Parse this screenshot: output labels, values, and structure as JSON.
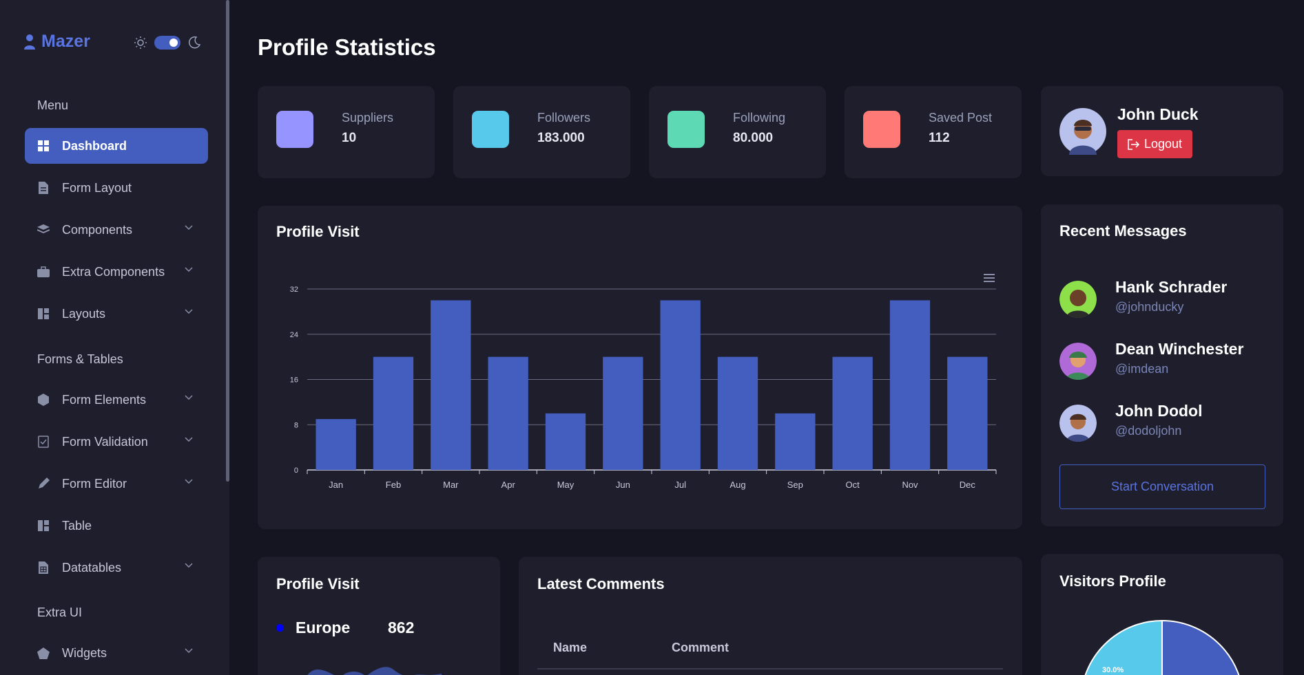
{
  "sidebar": {
    "brand": "Mazer",
    "sections": {
      "menu": "Menu",
      "forms_tables": "Forms & Tables",
      "extra_ui": "Extra UI"
    },
    "items": [
      {
        "label": "Dashboard"
      },
      {
        "label": "Form Layout"
      },
      {
        "label": "Components"
      },
      {
        "label": "Extra Components"
      },
      {
        "label": "Layouts"
      },
      {
        "label": "Form Elements"
      },
      {
        "label": "Form Validation"
      },
      {
        "label": "Form Editor"
      },
      {
        "label": "Table"
      },
      {
        "label": "Datatables"
      },
      {
        "label": "Widgets"
      }
    ]
  },
  "page": {
    "title": "Profile Statistics"
  },
  "stats": [
    {
      "label": "Suppliers",
      "value": "10",
      "color": "#9694ff"
    },
    {
      "label": "Followers",
      "value": "183.000",
      "color": "#57caeb"
    },
    {
      "label": "Following",
      "value": "80.000",
      "color": "#5ddab4"
    },
    {
      "label": "Saved Post",
      "value": "112",
      "color": "#ff7976"
    }
  ],
  "profile": {
    "name": "John Duck",
    "logout_label": "Logout"
  },
  "profile_visit_chart": {
    "title": "Profile Visit"
  },
  "chart_data": {
    "type": "bar",
    "title": "Profile Visit",
    "categories": [
      "Jan",
      "Feb",
      "Mar",
      "Apr",
      "May",
      "Jun",
      "Jul",
      "Aug",
      "Sep",
      "Oct",
      "Nov",
      "Dec"
    ],
    "values": [
      9,
      20,
      30,
      20,
      10,
      20,
      30,
      20,
      10,
      20,
      30,
      20
    ],
    "ylim": [
      0,
      32
    ],
    "yticks": [
      "0",
      "8",
      "16",
      "24",
      "32"
    ],
    "color": "#435ebe"
  },
  "recent_messages": {
    "title": "Recent Messages",
    "items": [
      {
        "name": "Hank Schrader",
        "handle": "@johnducky"
      },
      {
        "name": "Dean Winchester",
        "handle": "@imdean"
      },
      {
        "name": "John Dodol",
        "handle": "@dodoljohn"
      }
    ],
    "start_label": "Start Conversation"
  },
  "profile_visit_region": {
    "title": "Profile Visit",
    "region": "Europe",
    "value": "862"
  },
  "latest_comments": {
    "title": "Latest Comments",
    "columns": [
      "Name",
      "Comment"
    ]
  },
  "visitors_profile": {
    "title": "Visitors Profile",
    "slice_label": "30.0%"
  }
}
